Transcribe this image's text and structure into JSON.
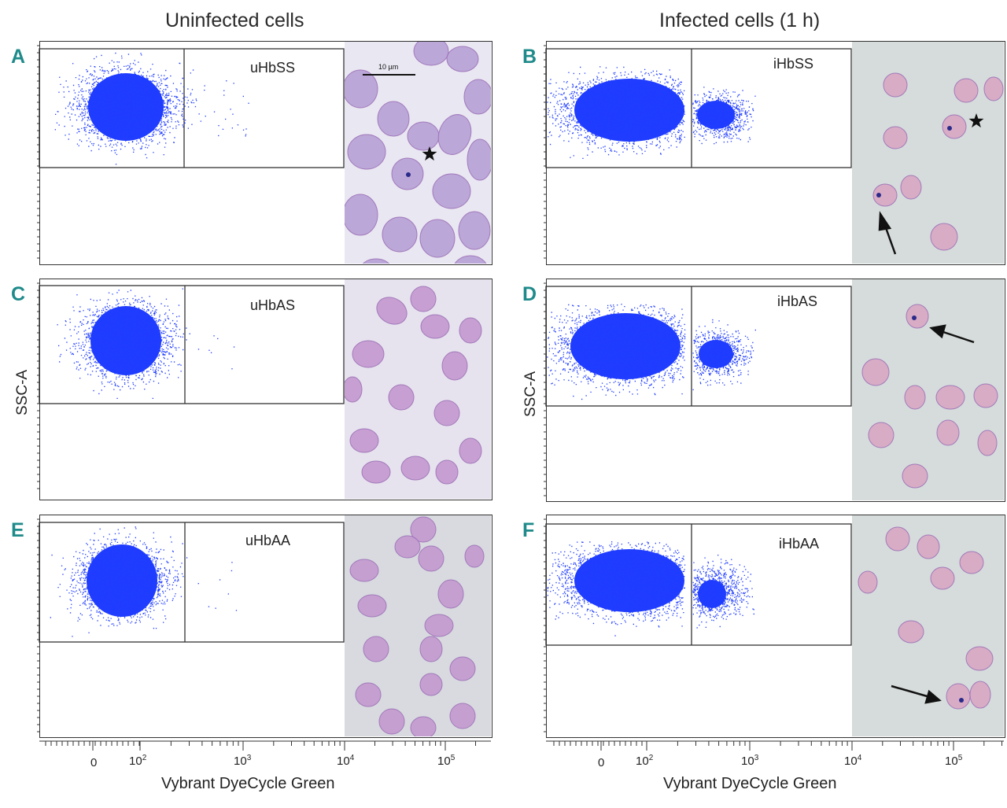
{
  "figure": {
    "column_titles": {
      "left": "Uninfected cells",
      "right": "Infected cells (1 h)"
    },
    "y_axis_label": "SSC-A",
    "x_axis_label": "Vybrant DyeCycle Green",
    "x_tick_labels": [
      {
        "base": "0",
        "exp": ""
      },
      {
        "base": "10",
        "exp": "2"
      },
      {
        "base": "10",
        "exp": "3"
      },
      {
        "base": "10",
        "exp": "4"
      },
      {
        "base": "10",
        "exp": "5"
      }
    ],
    "scale_bar_label": "10 µm",
    "panels": [
      {
        "letter": "A",
        "sample": "uHbSS",
        "infected": false
      },
      {
        "letter": "B",
        "sample": "iHbSS",
        "infected": true
      },
      {
        "letter": "C",
        "sample": "uHbAS",
        "infected": false
      },
      {
        "letter": "D",
        "sample": "iHbAS",
        "infected": true
      },
      {
        "letter": "E",
        "sample": "uHbAA",
        "infected": false
      },
      {
        "letter": "F",
        "sample": "iHbAA",
        "infected": true
      }
    ],
    "colors": {
      "scatter": "#1f3cff",
      "panel_letter": "#1f8a8a",
      "cell_fill": "#b98cd0",
      "photo_bg_uninfected": "#dde3e6",
      "photo_bg_infected": "#d6dcdb"
    }
  }
}
